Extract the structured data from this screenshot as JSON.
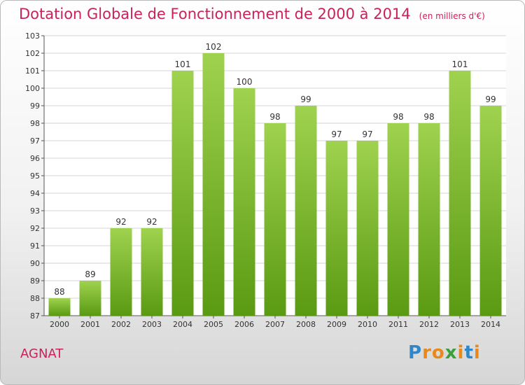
{
  "title": "Dotation Globale de Fonctionnement de 2000 à 2014",
  "subtitle": "(en milliers d'€)",
  "commune": "AGNAT",
  "brand": {
    "text": "Proxiti",
    "letters": [
      {
        "ch": "P",
        "color": "#2f86c8"
      },
      {
        "ch": "r",
        "color": "#e8891d"
      },
      {
        "ch": "o",
        "color": "#e8891d"
      },
      {
        "ch": "x",
        "color": "#3aa03a"
      },
      {
        "ch": "i",
        "color": "#e8891d"
      },
      {
        "ch": "t",
        "color": "#2f86c8"
      },
      {
        "ch": "i",
        "color": "#e8891d"
      }
    ]
  },
  "colors": {
    "title": "#c8225a",
    "bar_top": "#9fd24f",
    "bar_bottom": "#5a9a12",
    "axis": "#555555"
  },
  "chart_data": {
    "type": "bar",
    "categories": [
      "2000",
      "2001",
      "2002",
      "2003",
      "2004",
      "2005",
      "2006",
      "2007",
      "2008",
      "2009",
      "2010",
      "2011",
      "2012",
      "2013",
      "2014"
    ],
    "values": [
      88,
      89,
      92,
      92,
      101,
      102,
      100,
      98,
      99,
      97,
      97,
      98,
      98,
      101,
      99
    ],
    "ylim": [
      87,
      103
    ],
    "yticks": [
      87,
      88,
      89,
      90,
      91,
      92,
      93,
      94,
      95,
      96,
      97,
      98,
      99,
      100,
      101,
      102,
      103
    ],
    "grid": true,
    "xlabel": "",
    "ylabel": ""
  }
}
